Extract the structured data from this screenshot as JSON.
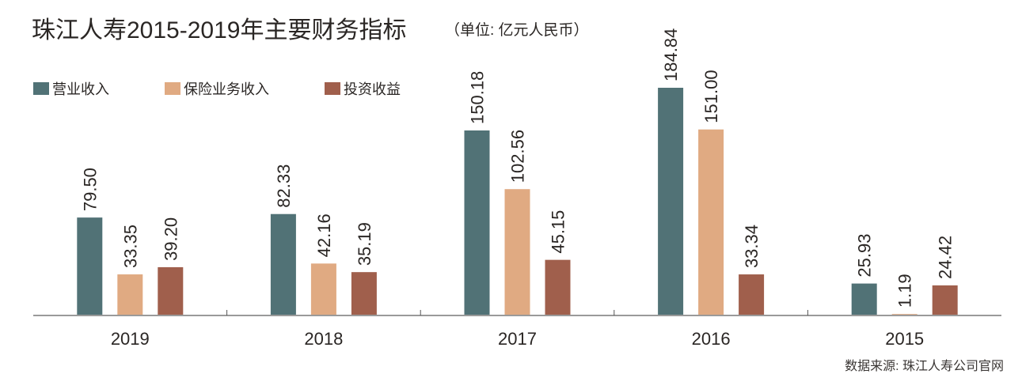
{
  "chart_data": {
    "type": "bar",
    "title": "珠江人寿2015-2019年主要财务指标",
    "subtitle": "（单位: 亿元人民币）",
    "source": "数据来源: 珠江人寿公司官网",
    "categories": [
      "2019",
      "2018",
      "2017",
      "2016",
      "2015"
    ],
    "series": [
      {
        "name": "营业收入",
        "color": "#517276",
        "values": [
          79.5,
          82.33,
          150.18,
          184.84,
          25.93
        ],
        "labels": [
          "79.50",
          "82.33",
          "150.18",
          "184.84",
          "25.93"
        ]
      },
      {
        "name": "保险业务收入",
        "color": "#e0aa82",
        "values": [
          33.35,
          42.16,
          102.56,
          151.0,
          1.19
        ],
        "labels": [
          "33.35",
          "42.16",
          "102.56",
          "151.00",
          "1.19"
        ]
      },
      {
        "name": "投资收益",
        "color": "#a05f4c",
        "values": [
          39.2,
          35.19,
          45.15,
          33.34,
          24.42
        ],
        "labels": [
          "39.20",
          "35.19",
          "45.15",
          "33.34",
          "24.42"
        ]
      }
    ],
    "legend_position": "top-left",
    "grid": false,
    "ylim": [
      0,
      190
    ]
  }
}
